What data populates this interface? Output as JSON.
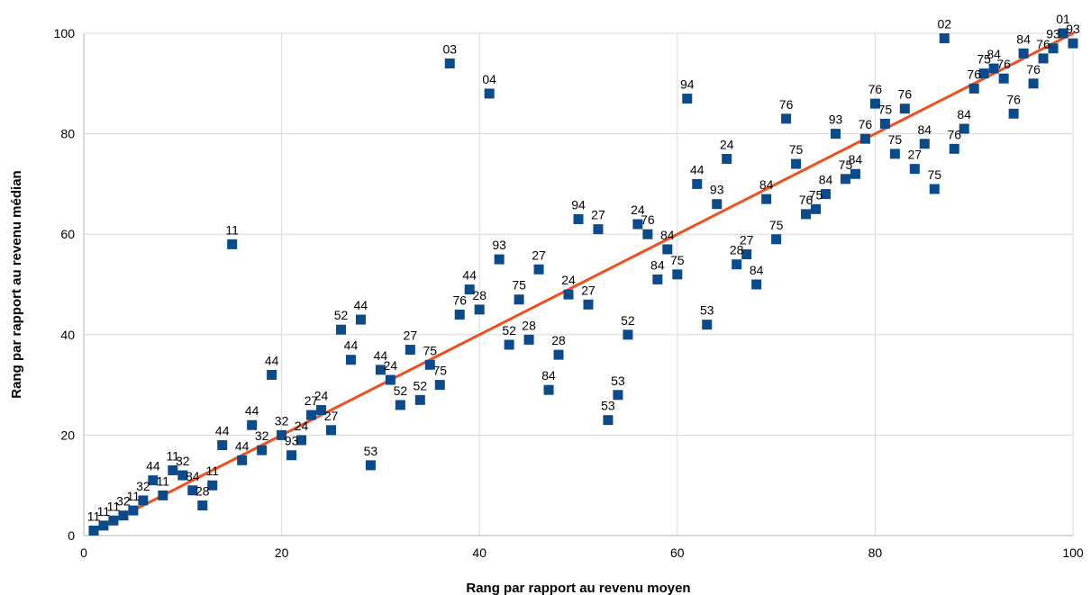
{
  "chart_data": {
    "type": "scatter",
    "title": "",
    "xlabel": "Rang par rapport au revenu moyen",
    "ylabel": "Rang par rapport au revenu médian",
    "xlim": [
      0,
      100
    ],
    "ylim": [
      0,
      100
    ],
    "x_ticks": [
      0,
      20,
      40,
      60,
      80,
      100
    ],
    "y_ticks": [
      0,
      20,
      40,
      60,
      80,
      100
    ],
    "grid": true,
    "legend": "none",
    "marker_color": "#0b4a8b",
    "trendline_color": "#f0501e",
    "trendline": {
      "x": [
        5,
        100
      ],
      "y": [
        5,
        100
      ]
    },
    "points": [
      {
        "x": 1,
        "y": 1,
        "label": "11"
      },
      {
        "x": 2,
        "y": 2,
        "label": "11"
      },
      {
        "x": 3,
        "y": 3,
        "label": "11"
      },
      {
        "x": 4,
        "y": 4,
        "label": "32"
      },
      {
        "x": 5,
        "y": 5,
        "label": "11"
      },
      {
        "x": 6,
        "y": 7,
        "label": "32"
      },
      {
        "x": 7,
        "y": 11,
        "label": "44"
      },
      {
        "x": 8,
        "y": 8,
        "label": "11"
      },
      {
        "x": 9,
        "y": 13,
        "label": "11"
      },
      {
        "x": 10,
        "y": 12,
        "label": "32"
      },
      {
        "x": 11,
        "y": 9,
        "label": "84"
      },
      {
        "x": 12,
        "y": 6,
        "label": "28"
      },
      {
        "x": 13,
        "y": 10,
        "label": "11"
      },
      {
        "x": 14,
        "y": 18,
        "label": "44"
      },
      {
        "x": 15,
        "y": 58,
        "label": "11"
      },
      {
        "x": 16,
        "y": 15,
        "label": "44"
      },
      {
        "x": 17,
        "y": 22,
        "label": "44"
      },
      {
        "x": 18,
        "y": 17,
        "label": "32"
      },
      {
        "x": 19,
        "y": 32,
        "label": "44"
      },
      {
        "x": 20,
        "y": 20,
        "label": "32"
      },
      {
        "x": 21,
        "y": 16,
        "label": "93"
      },
      {
        "x": 22,
        "y": 19,
        "label": "24"
      },
      {
        "x": 23,
        "y": 24,
        "label": "27"
      },
      {
        "x": 24,
        "y": 25,
        "label": "24"
      },
      {
        "x": 25,
        "y": 21,
        "label": "27"
      },
      {
        "x": 26,
        "y": 41,
        "label": "52"
      },
      {
        "x": 27,
        "y": 35,
        "label": "44"
      },
      {
        "x": 28,
        "y": 43,
        "label": "44"
      },
      {
        "x": 29,
        "y": 14,
        "label": "53"
      },
      {
        "x": 30,
        "y": 33,
        "label": "44"
      },
      {
        "x": 31,
        "y": 31,
        "label": "24"
      },
      {
        "x": 32,
        "y": 26,
        "label": "52"
      },
      {
        "x": 33,
        "y": 37,
        "label": "27"
      },
      {
        "x": 34,
        "y": 27,
        "label": "52"
      },
      {
        "x": 35,
        "y": 34,
        "label": "75"
      },
      {
        "x": 36,
        "y": 30,
        "label": "75"
      },
      {
        "x": 37,
        "y": 94,
        "label": "03"
      },
      {
        "x": 38,
        "y": 44,
        "label": "76"
      },
      {
        "x": 39,
        "y": 49,
        "label": "44"
      },
      {
        "x": 40,
        "y": 45,
        "label": "28"
      },
      {
        "x": 41,
        "y": 88,
        "label": "04"
      },
      {
        "x": 42,
        "y": 55,
        "label": "93"
      },
      {
        "x": 43,
        "y": 38,
        "label": "52"
      },
      {
        "x": 44,
        "y": 47,
        "label": "75"
      },
      {
        "x": 45,
        "y": 39,
        "label": "28"
      },
      {
        "x": 46,
        "y": 53,
        "label": "27"
      },
      {
        "x": 47,
        "y": 29,
        "label": "84"
      },
      {
        "x": 48,
        "y": 36,
        "label": "28"
      },
      {
        "x": 49,
        "y": 48,
        "label": "24"
      },
      {
        "x": 50,
        "y": 63,
        "label": "94"
      },
      {
        "x": 51,
        "y": 46,
        "label": "27"
      },
      {
        "x": 52,
        "y": 61,
        "label": "27"
      },
      {
        "x": 53,
        "y": 23,
        "label": "53"
      },
      {
        "x": 54,
        "y": 28,
        "label": "53"
      },
      {
        "x": 55,
        "y": 40,
        "label": "52"
      },
      {
        "x": 56,
        "y": 62,
        "label": "24"
      },
      {
        "x": 57,
        "y": 60,
        "label": "76"
      },
      {
        "x": 58,
        "y": 51,
        "label": "84"
      },
      {
        "x": 59,
        "y": 57,
        "label": "84"
      },
      {
        "x": 60,
        "y": 52,
        "label": "75"
      },
      {
        "x": 61,
        "y": 87,
        "label": "94"
      },
      {
        "x": 62,
        "y": 70,
        "label": "44"
      },
      {
        "x": 63,
        "y": 42,
        "label": "53"
      },
      {
        "x": 64,
        "y": 66,
        "label": "93"
      },
      {
        "x": 65,
        "y": 75,
        "label": "24"
      },
      {
        "x": 66,
        "y": 54,
        "label": "28"
      },
      {
        "x": 67,
        "y": 56,
        "label": "27"
      },
      {
        "x": 68,
        "y": 50,
        "label": "84"
      },
      {
        "x": 69,
        "y": 67,
        "label": "84"
      },
      {
        "x": 70,
        "y": 59,
        "label": "75"
      },
      {
        "x": 71,
        "y": 83,
        "label": "76"
      },
      {
        "x": 72,
        "y": 74,
        "label": "75"
      },
      {
        "x": 73,
        "y": 64,
        "label": "76"
      },
      {
        "x": 74,
        "y": 65,
        "label": "75"
      },
      {
        "x": 75,
        "y": 68,
        "label": "84"
      },
      {
        "x": 76,
        "y": 80,
        "label": "93"
      },
      {
        "x": 77,
        "y": 71,
        "label": "75"
      },
      {
        "x": 78,
        "y": 72,
        "label": "84"
      },
      {
        "x": 79,
        "y": 79,
        "label": "76"
      },
      {
        "x": 80,
        "y": 86,
        "label": "76"
      },
      {
        "x": 81,
        "y": 82,
        "label": "75"
      },
      {
        "x": 82,
        "y": 76,
        "label": "75"
      },
      {
        "x": 83,
        "y": 85,
        "label": "76"
      },
      {
        "x": 84,
        "y": 73,
        "label": "27"
      },
      {
        "x": 85,
        "y": 78,
        "label": "84"
      },
      {
        "x": 86,
        "y": 69,
        "label": "75"
      },
      {
        "x": 87,
        "y": 99,
        "label": "02"
      },
      {
        "x": 88,
        "y": 77,
        "label": "76"
      },
      {
        "x": 89,
        "y": 81,
        "label": "84"
      },
      {
        "x": 90,
        "y": 89,
        "label": "76"
      },
      {
        "x": 91,
        "y": 92,
        "label": "75"
      },
      {
        "x": 92,
        "y": 93,
        "label": "84"
      },
      {
        "x": 93,
        "y": 91,
        "label": "76"
      },
      {
        "x": 94,
        "y": 84,
        "label": "76"
      },
      {
        "x": 95,
        "y": 96,
        "label": "84"
      },
      {
        "x": 96,
        "y": 90,
        "label": "76"
      },
      {
        "x": 97,
        "y": 95,
        "label": "76"
      },
      {
        "x": 98,
        "y": 97,
        "label": "93"
      },
      {
        "x": 99,
        "y": 100,
        "label": "01"
      },
      {
        "x": 100,
        "y": 98,
        "label": "93"
      }
    ]
  }
}
